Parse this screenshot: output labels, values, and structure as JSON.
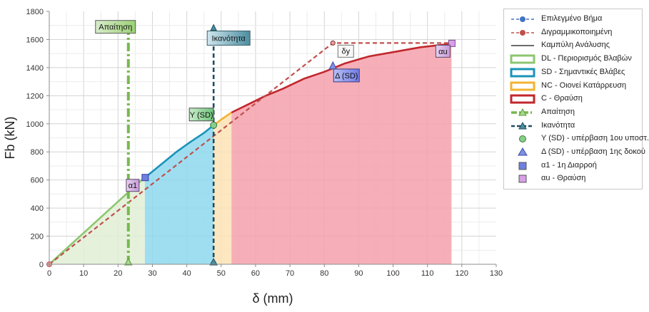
{
  "chart_data": {
    "type": "line",
    "xlabel": "δ (mm)",
    "ylabel": "Fb (kN)",
    "xlim": [
      0,
      130
    ],
    "ylim": [
      0,
      1800
    ],
    "x_ticks": [
      "0",
      "10",
      "20",
      "30",
      "40",
      "50",
      "60",
      "70",
      "80",
      "90",
      "100",
      "110",
      "120",
      "130"
    ],
    "y_ticks": [
      "0",
      "200",
      "400",
      "600",
      "800",
      "1000",
      "1200",
      "1400",
      "1600",
      "1800"
    ],
    "grid": true,
    "legend_position": "right",
    "regions": [
      {
        "name": "DL - Περιορισμός Βλαβών",
        "x_range": [
          0,
          27.8
        ],
        "color": "#8dc670",
        "fill": "#e2efd6"
      },
      {
        "name": "SD - Σημαντικές Βλάβες",
        "x_range": [
          27.8,
          47.8
        ],
        "color": "#1a93b8",
        "fill": "#8ed8ee"
      },
      {
        "name": "NC - Οιονεί Κατάρρευση",
        "x_range": [
          47.8,
          53
        ],
        "color": "#f3b233",
        "fill": "#fbe3b6"
      },
      {
        "name": "C - Θραύση",
        "x_range": [
          53,
          117
        ],
        "color": "#c1272d",
        "fill": "#f4a1ab"
      }
    ],
    "series": [
      {
        "name": "Καμπύλη Ανάλυσης",
        "color": "#3a3a3a",
        "points": [
          [
            0,
            0
          ],
          [
            27.8,
            620
          ],
          [
            29,
            640
          ],
          [
            33,
            720
          ],
          [
            37,
            800
          ],
          [
            41,
            870
          ],
          [
            45,
            935
          ],
          [
            47.8,
            990
          ],
          [
            50,
            1030
          ],
          [
            53,
            1080
          ],
          [
            58,
            1140
          ],
          [
            63,
            1200
          ],
          [
            68,
            1250
          ],
          [
            74,
            1320
          ],
          [
            80,
            1370
          ],
          [
            86,
            1430
          ],
          [
            93,
            1480
          ],
          [
            100,
            1510
          ],
          [
            108,
            1545
          ],
          [
            117,
            1570
          ]
        ]
      },
      {
        "name": "Διγραμμικοποιημένη",
        "color": "#c0504d",
        "points": [
          [
            0,
            0
          ],
          [
            82.5,
            1575
          ],
          [
            117,
            1575
          ]
        ]
      },
      {
        "name": "Απαίτηση",
        "color": "#77b94e",
        "points": [
          [
            23,
            0
          ],
          [
            23,
            1680
          ]
        ]
      },
      {
        "name": "Ικανότητα",
        "color": "#1f4e5f",
        "points": [
          [
            47.8,
            0
          ],
          [
            47.8,
            1680
          ]
        ]
      }
    ],
    "legend_entries": [
      {
        "label": "Επιλεγμένο Βήμα",
        "swatch": "dash-circle",
        "color": "#4472c4"
      },
      {
        "label": "Διγραμμικοποιημένη",
        "swatch": "dash-circle",
        "color": "#c0504d"
      },
      {
        "label": "Καμπύλη Ανάλυσης",
        "swatch": "line",
        "color": "#3a3a3a"
      },
      {
        "label": "DL - Περιορισμός Βλαβών",
        "swatch": "box",
        "color": "#8dc670"
      },
      {
        "label": "SD - Σημαντικές Βλάβες",
        "swatch": "box",
        "color": "#1a93b8"
      },
      {
        "label": "NC - Οιονεί Κατάρρευση",
        "swatch": "box",
        "color": "#f3b233"
      },
      {
        "label": "C - Θραύση",
        "swatch": "box",
        "color": "#c1272d"
      },
      {
        "label": "Απαίτηση",
        "swatch": "dashdot-triangle",
        "color": "#77b94e"
      },
      {
        "label": "Ικανότητα",
        "swatch": "dash-triangle",
        "color": "#1f4e5f"
      },
      {
        "label": "Υ (SD) - υπέρβαση 1ου υποστ.",
        "swatch": "circle",
        "color": "#86cf8a"
      },
      {
        "label": "Δ (SD) - υπέρβαση 1ης δοκού",
        "swatch": "triangle",
        "color": "#8090e0"
      },
      {
        "label": "α1 - 1η Διαρροή",
        "swatch": "square",
        "color": "#6f7fe0"
      },
      {
        "label": "αu - Θραύση",
        "swatch": "square",
        "color": "#d8a0e8"
      }
    ],
    "markers": [
      {
        "label": "Υ (SD)",
        "shape": "circle",
        "x": 47.8,
        "y": 990
      },
      {
        "label": "Δ (SD)",
        "shape": "triangle",
        "x": 82.5,
        "y": 1410
      },
      {
        "label": "α1",
        "shape": "square",
        "x": 27.8,
        "y": 620
      },
      {
        "label": "αu",
        "shape": "square",
        "x": 117,
        "y": 1575
      },
      {
        "label": "δy",
        "shape": "point",
        "x": 82.5,
        "y": 1575
      }
    ],
    "annotations": [
      {
        "text": "Απαίτηση",
        "x": 23,
        "y": 1690
      },
      {
        "text": "Ικανότητα",
        "x": 47.8,
        "y": 1610
      }
    ]
  }
}
